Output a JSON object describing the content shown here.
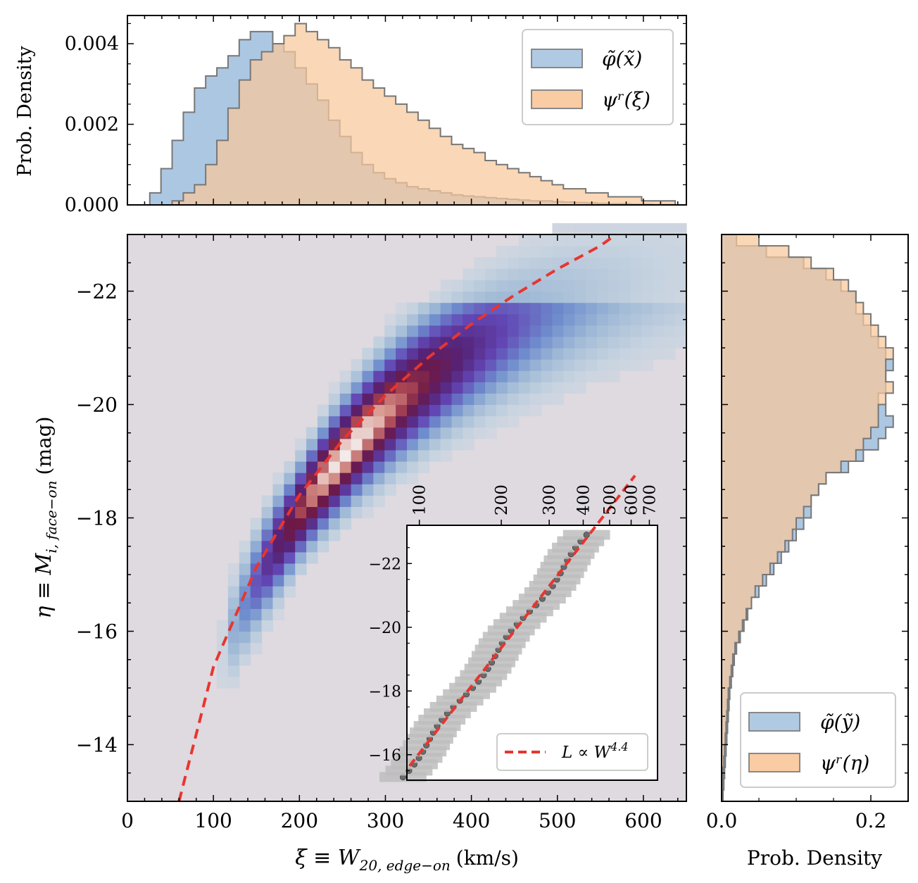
{
  "chart_data": [
    {
      "type": "histogram",
      "panel": "top-marginal",
      "ylabel": "Prob. Density",
      "xlim": [
        0,
        650
      ],
      "ylim": [
        0,
        0.0047
      ],
      "yticks": [
        "0.000",
        "0.002",
        "0.004"
      ],
      "legend": {
        "position": "top-right",
        "labels": [
          "φ̃(x̃)",
          "ψʳ(ξ)"
        ]
      },
      "bin_edges": [
        0,
        13,
        26,
        39,
        52,
        65,
        78,
        91,
        104,
        117,
        130,
        143,
        156,
        169,
        182,
        195,
        208,
        221,
        234,
        247,
        260,
        273,
        286,
        299,
        312,
        325,
        338,
        351,
        364,
        377,
        390,
        403,
        416,
        429,
        442,
        455,
        468,
        481,
        494,
        507,
        520,
        533,
        546,
        559,
        572,
        585,
        598,
        611,
        624,
        637,
        650
      ],
      "series": [
        {
          "name": "φ̃(x̃)",
          "color": "#a8c4e0",
          "values": [
            0,
            0,
            0.0003,
            0.0009,
            0.0016,
            0.0023,
            0.0029,
            0.0032,
            0.0034,
            0.0037,
            0.0041,
            0.0043,
            0.0043,
            0.004,
            0.0038,
            0.0034,
            0.003,
            0.0026,
            0.0021,
            0.0017,
            0.0013,
            0.001,
            0.0008,
            0.00065,
            0.00055,
            0.00045,
            0.0004,
            0.00035,
            0.0003,
            0.00025,
            0.00022,
            0.0002,
            0.00018,
            0.00016,
            0.00014,
            0.00012,
            0.0001,
            0.0001,
            8e-05,
            7e-05,
            6e-05,
            5e-05,
            4e-05,
            3e-05,
            3e-05,
            2e-05,
            2e-05,
            1e-05,
            1e-05,
            0
          ]
        },
        {
          "name": "ψʳ(ξ)",
          "color": "#f8c79a",
          "values": [
            0,
            0,
            0,
            0,
            0.0001,
            0.0003,
            0.0005,
            0.001,
            0.0016,
            0.0024,
            0.0031,
            0.0036,
            0.0038,
            0.004,
            0.0042,
            0.0045,
            0.0043,
            0.0041,
            0.0039,
            0.0036,
            0.0034,
            0.0031,
            0.0029,
            0.0027,
            0.0025,
            0.0023,
            0.0021,
            0.0019,
            0.0017,
            0.0015,
            0.0014,
            0.0013,
            0.0011,
            0.001,
            0.0009,
            0.0008,
            0.0007,
            0.0006,
            0.0005,
            0.0004,
            0.0004,
            0.0003,
            0.0003,
            0.0002,
            0.0002,
            0.0002,
            0.0001,
            0.0001,
            0.0001,
            0
          ]
        }
      ]
    },
    {
      "type": "heatmap",
      "panel": "main-2d-histogram",
      "xlabel": "ξ ≡ W",
      "xlabel_sub": "20, edge−on",
      "xlabel_unit": "(km/s)",
      "ylabel": "η ≡ M",
      "ylabel_sub": "i, face−on",
      "ylabel_unit": "(mag)",
      "xlim": [
        0,
        650
      ],
      "ylim": [
        -13,
        -23
      ],
      "xticks": [
        "0",
        "100",
        "200",
        "300",
        "400",
        "500",
        "600"
      ],
      "yticks": [
        "−22",
        "−20",
        "−18",
        "−16",
        "−14"
      ],
      "colormap": "twilight-like (lavender → blue → purple → pink → white)",
      "relation": {
        "type": "line",
        "style": "dashed",
        "color": "#e8352f",
        "exponent": 4.4,
        "log_W_at": [
          [
            60,
            -13.0
          ],
          [
            100,
            -15.37
          ],
          [
            150,
            -17.13
          ],
          [
            200,
            -18.4
          ],
          [
            250,
            -19.37
          ],
          [
            300,
            -20.16
          ],
          [
            350,
            -20.83
          ],
          [
            400,
            -21.42
          ],
          [
            450,
            -21.93
          ],
          [
            500,
            -22.39
          ],
          [
            550,
            -22.8
          ]
        ]
      }
    },
    {
      "type": "scatter",
      "panel": "inset",
      "top_ticks": [
        "100",
        "200",
        "300",
        "400",
        "500",
        "600",
        "700"
      ],
      "yticks": [
        "−22",
        "−20",
        "−18",
        "−16"
      ],
      "ylim": [
        -15.2,
        -23.2
      ],
      "legend": {
        "position": "bottom-right",
        "label": "L ∝ W",
        "sup": "4.4"
      }
    },
    {
      "type": "histogram",
      "panel": "right-marginal",
      "xlabel": "Prob. Density",
      "xticks": [
        "0.0",
        "0.2"
      ],
      "xlim": [
        0,
        0.25
      ],
      "ylim": [
        -13,
        -23
      ],
      "legend": {
        "position": "bottom-right",
        "labels": [
          "φ̃(ỹ)",
          "ψʳ(η)"
        ]
      },
      "bin_centers": [
        -22.9,
        -22.7,
        -22.5,
        -22.3,
        -22.1,
        -21.9,
        -21.7,
        -21.5,
        -21.3,
        -21.1,
        -20.9,
        -20.7,
        -20.5,
        -20.3,
        -20.1,
        -19.9,
        -19.7,
        -19.5,
        -19.3,
        -19.1,
        -18.9,
        -18.7,
        -18.5,
        -18.3,
        -18.1,
        -17.9,
        -17.7,
        -17.5,
        -17.3,
        -17.1,
        -16.9,
        -16.7,
        -16.5,
        -16.3,
        -16.1,
        -15.9,
        -15.7,
        -15.5,
        -15.3,
        -15.1,
        -14.9,
        -14.7,
        -14.5,
        -14.3,
        -14.1,
        -13.9,
        -13.7,
        -13.5,
        -13.3,
        -13.1
      ],
      "series": [
        {
          "name": "φ̃(ỹ)",
          "color": "#a8c4e0",
          "values": [
            0.02,
            0.06,
            0.11,
            0.14,
            0.16,
            0.18,
            0.18,
            0.19,
            0.2,
            0.21,
            0.22,
            0.23,
            0.22,
            0.22,
            0.21,
            0.22,
            0.23,
            0.22,
            0.21,
            0.19,
            0.17,
            0.14,
            0.13,
            0.12,
            0.12,
            0.11,
            0.1,
            0.09,
            0.08,
            0.07,
            0.06,
            0.05,
            0.04,
            0.035,
            0.03,
            0.025,
            0.02,
            0.017,
            0.015,
            0.013,
            0.011,
            0.01,
            0.009,
            0.008,
            0.007,
            0.006,
            0.005,
            0.004,
            0.003,
            0.002
          ]
        },
        {
          "name": "ψʳ(η)",
          "color": "#f8c79a",
          "values": [
            0.05,
            0.09,
            0.12,
            0.15,
            0.17,
            0.18,
            0.19,
            0.2,
            0.21,
            0.22,
            0.23,
            0.22,
            0.22,
            0.23,
            0.22,
            0.21,
            0.21,
            0.2,
            0.19,
            0.18,
            0.16,
            0.14,
            0.13,
            0.12,
            0.11,
            0.1,
            0.095,
            0.085,
            0.075,
            0.065,
            0.055,
            0.045,
            0.04,
            0.033,
            0.028,
            0.023,
            0.018,
            0.015,
            0.013,
            0.011,
            0.009,
            0.008,
            0.007,
            0.006,
            0.005,
            0.004,
            0.003,
            0.002,
            0.002,
            0.001
          ]
        }
      ]
    }
  ]
}
